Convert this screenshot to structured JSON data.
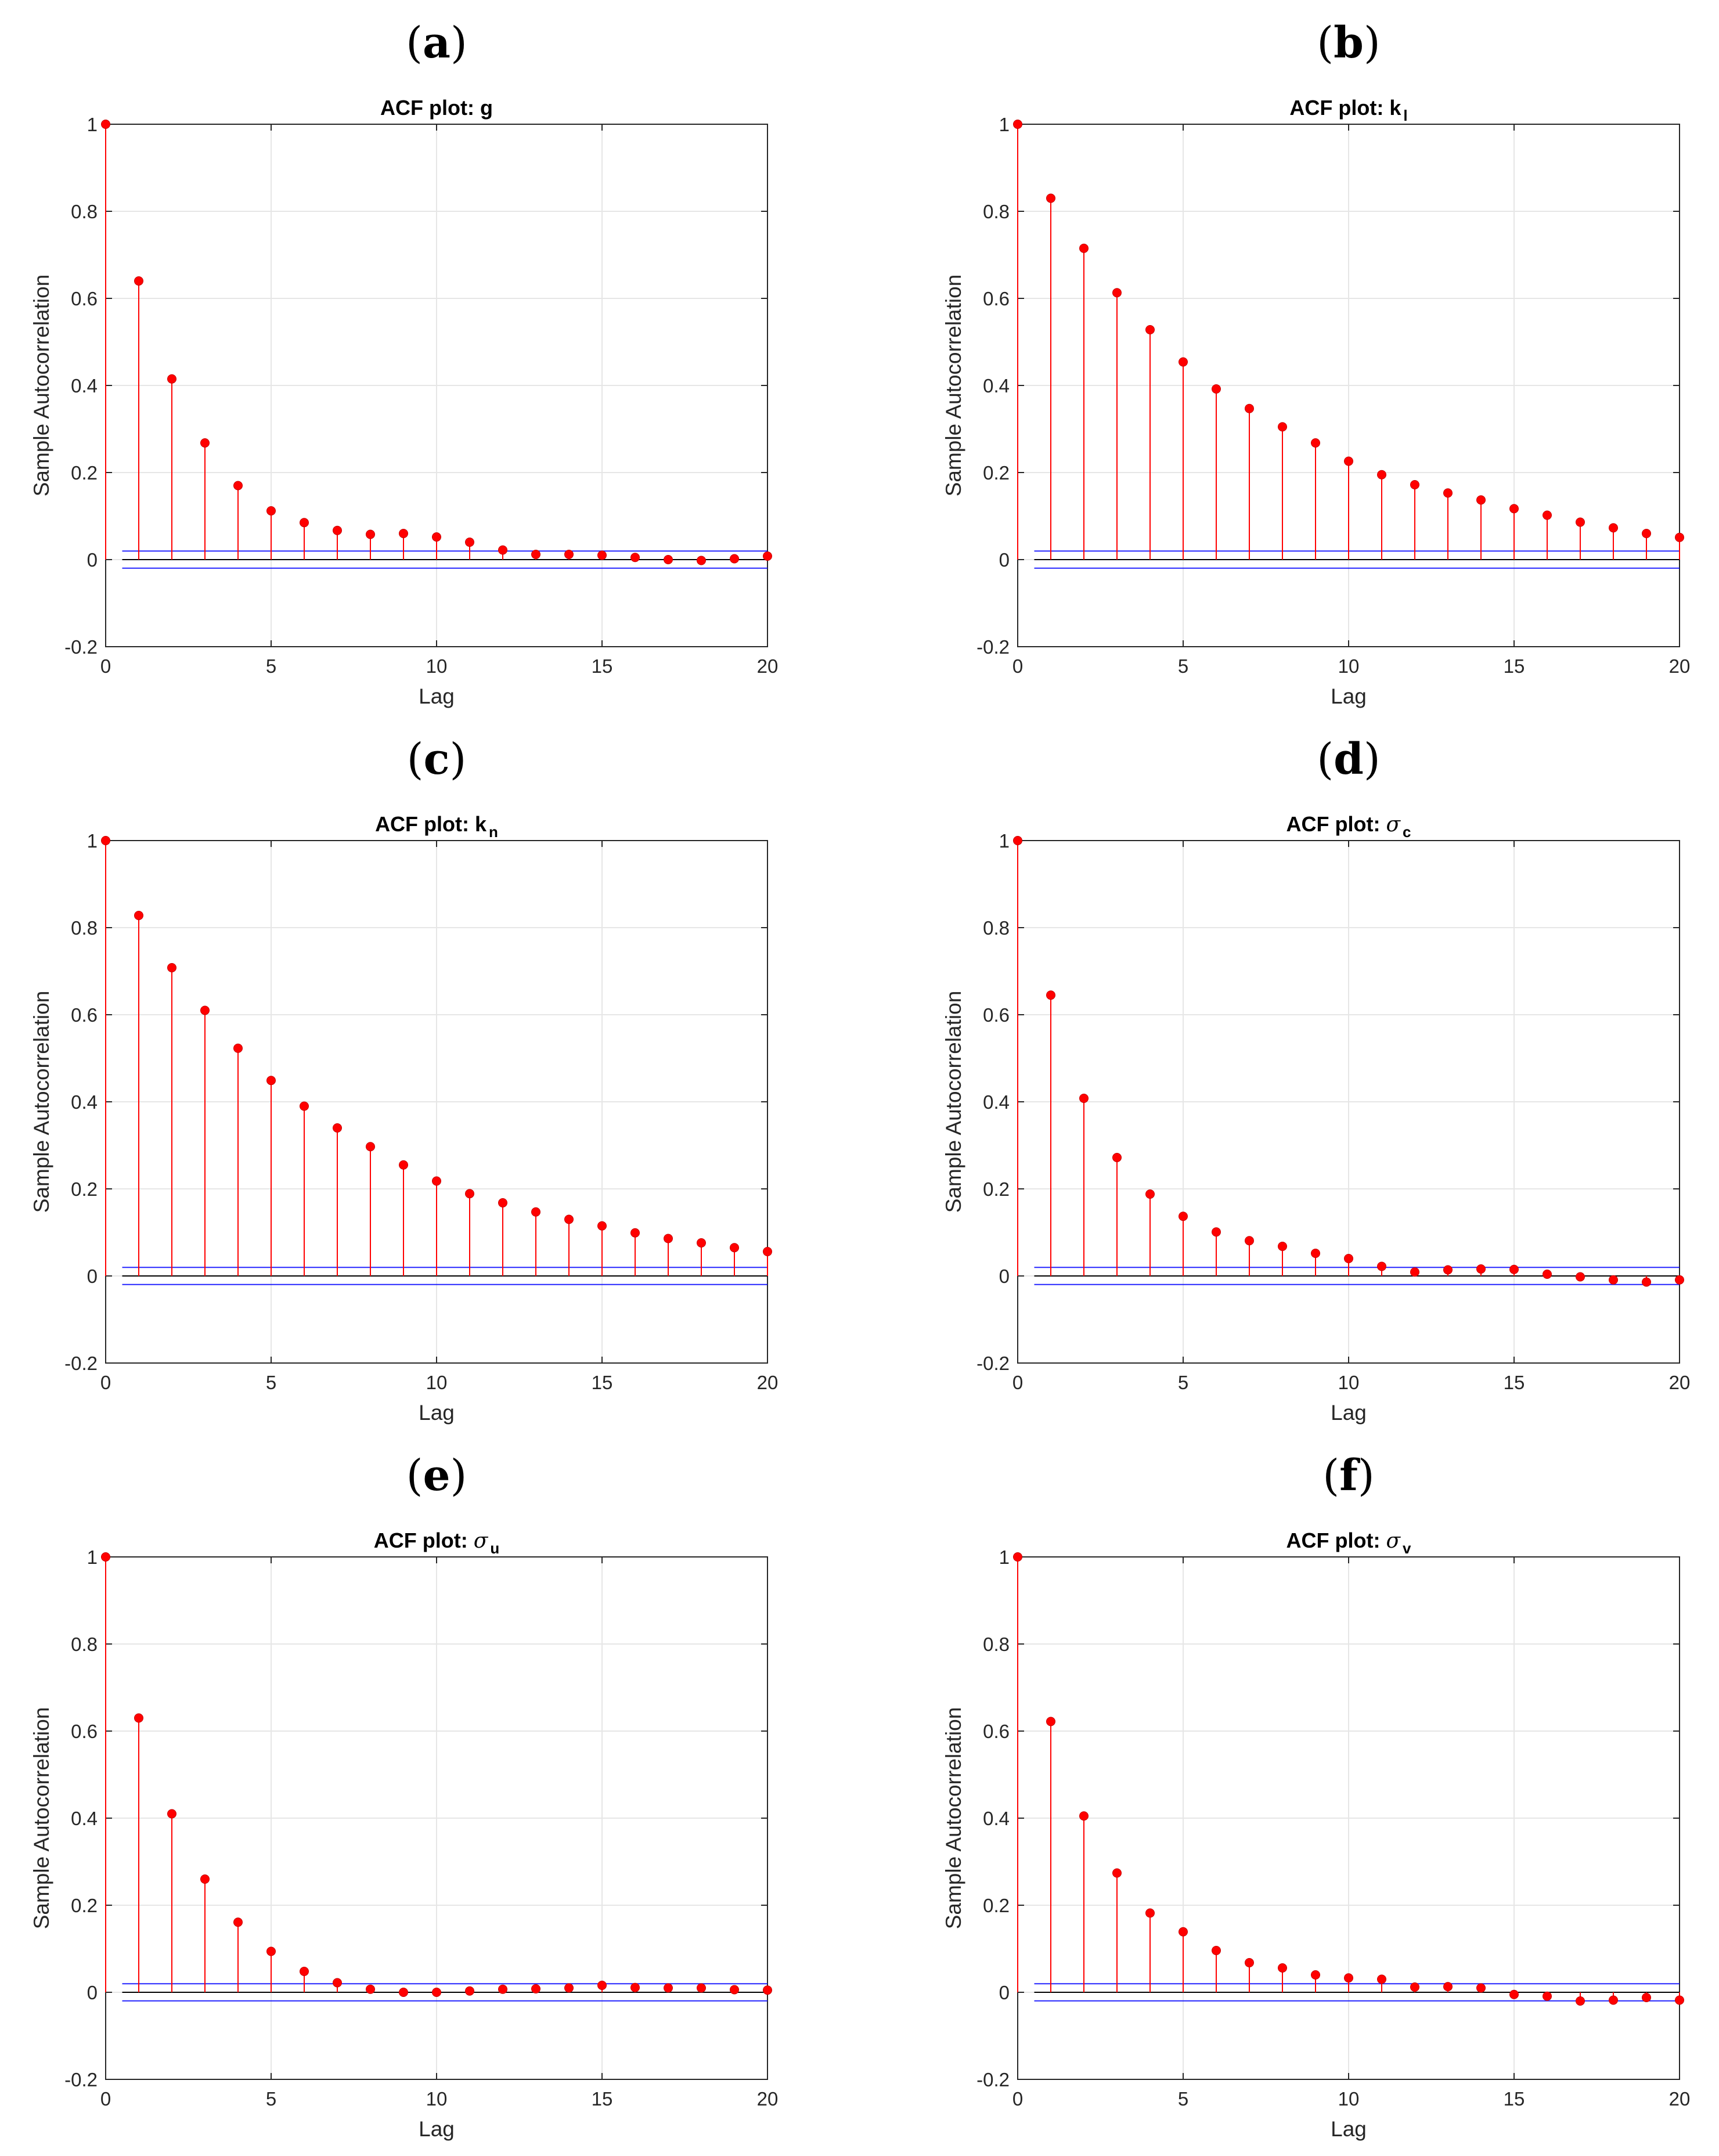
{
  "chart_data": [
    {
      "panel": "a",
      "type": "stem",
      "title": "ACF plot: g",
      "title_base": "ACF plot: ",
      "title_symbol": "g",
      "title_symbol_greek": false,
      "title_subscript": "",
      "xlabel": "Lag",
      "ylabel": "Sample Autocorrelation",
      "xlim": [
        0,
        20
      ],
      "ylim": [
        -0.2,
        1
      ],
      "xticks": [
        0,
        5,
        10,
        15,
        20
      ],
      "yticks": [
        -0.2,
        0,
        0.2,
        0.4,
        0.6,
        0.8,
        1
      ],
      "ytick_labels": [
        "-0.2",
        "0",
        "0.2",
        "0.4",
        "0.6",
        "0.8",
        "1"
      ],
      "grid": true,
      "confidence_bounds": [
        0.0196,
        -0.0196
      ],
      "x": [
        0,
        1,
        2,
        3,
        4,
        5,
        6,
        7,
        8,
        9,
        10,
        11,
        12,
        13,
        14,
        15,
        16,
        17,
        18,
        19,
        20
      ],
      "values": [
        1,
        0.64,
        0.415,
        0.268,
        0.17,
        0.112,
        0.085,
        0.067,
        0.058,
        0.06,
        0.052,
        0.04,
        0.022,
        0.012,
        0.012,
        0.01,
        0.005,
        0.0,
        -0.002,
        0.002,
        0.008
      ]
    },
    {
      "panel": "b",
      "type": "stem",
      "title": "ACF plot: k_l",
      "title_base": "ACF plot: ",
      "title_symbol": "k",
      "title_symbol_greek": false,
      "title_subscript": "l",
      "xlabel": "Lag",
      "ylabel": "Sample Autocorrelation",
      "xlim": [
        0,
        20
      ],
      "ylim": [
        -0.2,
        1
      ],
      "xticks": [
        0,
        5,
        10,
        15,
        20
      ],
      "yticks": [
        -0.2,
        0,
        0.2,
        0.4,
        0.6,
        0.8,
        1
      ],
      "ytick_labels": [
        "-0.2",
        "0",
        "0.2",
        "0.4",
        "0.6",
        "0.8",
        "1"
      ],
      "grid": true,
      "confidence_bounds": [
        0.0196,
        -0.0196
      ],
      "x": [
        0,
        1,
        2,
        3,
        4,
        5,
        6,
        7,
        8,
        9,
        10,
        11,
        12,
        13,
        14,
        15,
        16,
        17,
        18,
        19,
        20
      ],
      "values": [
        1,
        0.83,
        0.715,
        0.613,
        0.528,
        0.454,
        0.392,
        0.347,
        0.305,
        0.268,
        0.226,
        0.195,
        0.172,
        0.153,
        0.137,
        0.117,
        0.102,
        0.086,
        0.073,
        0.06,
        0.051
      ]
    },
    {
      "panel": "c",
      "type": "stem",
      "title": "ACF plot: k_n",
      "title_base": "ACF plot: ",
      "title_symbol": "k",
      "title_symbol_greek": false,
      "title_subscript": "n",
      "xlabel": "Lag",
      "ylabel": "Sample Autocorrelation",
      "xlim": [
        0,
        20
      ],
      "ylim": [
        -0.2,
        1
      ],
      "xticks": [
        0,
        5,
        10,
        15,
        20
      ],
      "yticks": [
        -0.2,
        0,
        0.2,
        0.4,
        0.6,
        0.8,
        1
      ],
      "ytick_labels": [
        "-0.2",
        "0",
        "0.2",
        "0.4",
        "0.6",
        "0.8",
        "1"
      ],
      "grid": true,
      "confidence_bounds": [
        0.0196,
        -0.0196
      ],
      "x": [
        0,
        1,
        2,
        3,
        4,
        5,
        6,
        7,
        8,
        9,
        10,
        11,
        12,
        13,
        14,
        15,
        16,
        17,
        18,
        19,
        20
      ],
      "values": [
        1,
        0.828,
        0.708,
        0.61,
        0.523,
        0.449,
        0.39,
        0.34,
        0.297,
        0.255,
        0.218,
        0.189,
        0.168,
        0.147,
        0.13,
        0.115,
        0.099,
        0.086,
        0.076,
        0.065,
        0.056
      ]
    },
    {
      "panel": "d",
      "type": "stem",
      "title": "ACF plot: σ_c",
      "title_base": "ACF plot: ",
      "title_symbol": "σ",
      "title_symbol_greek": true,
      "title_subscript": "c",
      "xlabel": "Lag",
      "ylabel": "Sample Autocorrelation",
      "xlim": [
        0,
        20
      ],
      "ylim": [
        -0.2,
        1
      ],
      "xticks": [
        0,
        5,
        10,
        15,
        20
      ],
      "yticks": [
        -0.2,
        0,
        0.2,
        0.4,
        0.6,
        0.8,
        1
      ],
      "ytick_labels": [
        "-0.2",
        "0",
        "0.2",
        "0.4",
        "0.6",
        "0.8",
        "1"
      ],
      "grid": true,
      "confidence_bounds": [
        0.0196,
        -0.0196
      ],
      "x": [
        0,
        1,
        2,
        3,
        4,
        5,
        6,
        7,
        8,
        9,
        10,
        11,
        12,
        13,
        14,
        15,
        16,
        17,
        18,
        19,
        20
      ],
      "values": [
        1,
        0.645,
        0.408,
        0.272,
        0.188,
        0.137,
        0.101,
        0.081,
        0.068,
        0.052,
        0.04,
        0.022,
        0.009,
        0.014,
        0.016,
        0.015,
        0.004,
        -0.002,
        -0.009,
        -0.014,
        -0.009
      ]
    },
    {
      "panel": "e",
      "type": "stem",
      "title": "ACF plot: σ_u",
      "title_base": "ACF plot: ",
      "title_symbol": "σ",
      "title_symbol_greek": true,
      "title_subscript": "u",
      "xlabel": "Lag",
      "ylabel": "Sample Autocorrelation",
      "xlim": [
        0,
        20
      ],
      "ylim": [
        -0.2,
        1
      ],
      "xticks": [
        0,
        5,
        10,
        15,
        20
      ],
      "yticks": [
        -0.2,
        0,
        0.2,
        0.4,
        0.6,
        0.8,
        1
      ],
      "ytick_labels": [
        "-0.2",
        "0",
        "0.2",
        "0.4",
        "0.6",
        "0.8",
        "1"
      ],
      "grid": true,
      "confidence_bounds": [
        0.0196,
        -0.0196
      ],
      "x": [
        0,
        1,
        2,
        3,
        4,
        5,
        6,
        7,
        8,
        9,
        10,
        11,
        12,
        13,
        14,
        15,
        16,
        17,
        18,
        19,
        20
      ],
      "values": [
        1,
        0.63,
        0.41,
        0.26,
        0.161,
        0.094,
        0.048,
        0.022,
        0.007,
        0.0,
        0.0,
        0.003,
        0.007,
        0.008,
        0.01,
        0.016,
        0.011,
        0.01,
        0.01,
        0.006,
        0.005
      ]
    },
    {
      "panel": "f",
      "type": "stem",
      "title": "ACF plot: σ_v",
      "title_base": "ACF plot: ",
      "title_symbol": "σ",
      "title_symbol_greek": true,
      "title_subscript": "v",
      "xlabel": "Lag",
      "ylabel": "Sample Autocorrelation",
      "xlim": [
        0,
        20
      ],
      "ylim": [
        -0.2,
        1
      ],
      "xticks": [
        0,
        5,
        10,
        15,
        20
      ],
      "yticks": [
        -0.2,
        0,
        0.2,
        0.4,
        0.6,
        0.8,
        1
      ],
      "ytick_labels": [
        "-0.2",
        "0",
        "0.2",
        "0.4",
        "0.6",
        "0.8",
        "1"
      ],
      "grid": true,
      "confidence_bounds": [
        0.0196,
        -0.0196
      ],
      "x": [
        0,
        1,
        2,
        3,
        4,
        5,
        6,
        7,
        8,
        9,
        10,
        11,
        12,
        13,
        14,
        15,
        16,
        17,
        18,
        19,
        20
      ],
      "values": [
        1,
        0.622,
        0.405,
        0.274,
        0.182,
        0.139,
        0.096,
        0.068,
        0.056,
        0.04,
        0.033,
        0.03,
        0.012,
        0.013,
        0.01,
        -0.005,
        -0.009,
        -0.02,
        -0.018,
        -0.012,
        -0.018
      ]
    }
  ],
  "colors": {
    "stem": "#ff0000",
    "bound": "#0000ff",
    "baseline": "#000000",
    "grid": "#e6e6e6"
  }
}
